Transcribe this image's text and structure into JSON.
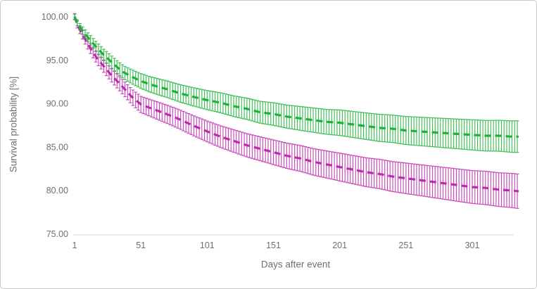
{
  "chart_data": {
    "type": "line",
    "title": "",
    "xlabel": "Days after event",
    "ylabel": "Survival probability [%]",
    "xlim": [
      1,
      336
    ],
    "ylim": [
      75,
      100
    ],
    "xticks": [
      1,
      51,
      101,
      151,
      201,
      251,
      301
    ],
    "yticks": [
      100,
      95,
      90,
      85,
      80,
      75
    ],
    "ytick_labels": [
      "100.00",
      "95.00",
      "90.00",
      "85.00",
      "80.00",
      "75.00"
    ],
    "grid": false,
    "legend": "none",
    "axis_color": "#d9d9d9",
    "label_color": "#6f6f6f",
    "x": [
      1,
      3,
      6,
      10,
      14,
      18,
      23,
      28,
      33,
      38,
      44,
      51,
      58,
      65,
      72,
      80,
      90,
      101,
      111,
      121,
      131,
      141,
      151,
      161,
      171,
      181,
      191,
      201,
      211,
      221,
      231,
      241,
      251,
      261,
      271,
      281,
      291,
      301,
      311,
      321,
      331,
      336
    ],
    "series": [
      {
        "name": "green-series",
        "color": "#1db237",
        "marker": "dash-with-error-bars",
        "values": [
          100.0,
          99.3,
          98.6,
          97.8,
          97.1,
          96.4,
          95.6,
          94.9,
          94.2,
          93.6,
          93.1,
          92.6,
          92.2,
          91.9,
          91.6,
          91.2,
          90.8,
          90.4,
          90.1,
          89.7,
          89.4,
          89.0,
          88.8,
          88.5,
          88.3,
          88.1,
          87.9,
          87.8,
          87.6,
          87.4,
          87.2,
          87.1,
          86.9,
          86.8,
          86.7,
          86.6,
          86.5,
          86.4,
          86.3,
          86.3,
          86.2,
          86.2
        ],
        "ci": [
          0.3,
          0.35,
          0.4,
          0.5,
          0.55,
          0.6,
          0.65,
          0.7,
          0.73,
          0.76,
          0.8,
          0.85,
          0.89,
          0.93,
          0.96,
          1.0,
          1.05,
          1.1,
          1.15,
          1.19,
          1.23,
          1.26,
          1.3,
          1.33,
          1.37,
          1.4,
          1.43,
          1.47,
          1.5,
          1.53,
          1.56,
          1.58,
          1.61,
          1.64,
          1.66,
          1.69,
          1.71,
          1.74,
          1.76,
          1.78,
          1.81,
          1.82
        ]
      },
      {
        "name": "magenta-series",
        "color": "#bc2bac",
        "marker": "dash-with-error-bars",
        "values": [
          100.0,
          99.1,
          98.2,
          97.1,
          96.1,
          95.2,
          94.3,
          93.4,
          92.6,
          91.8,
          90.8,
          89.9,
          89.5,
          89.1,
          88.7,
          88.2,
          87.5,
          86.8,
          86.2,
          85.7,
          85.2,
          84.8,
          84.4,
          84.0,
          83.7,
          83.3,
          83.0,
          82.7,
          82.4,
          82.1,
          81.9,
          81.6,
          81.4,
          81.2,
          81.0,
          80.8,
          80.6,
          80.4,
          80.3,
          80.1,
          80.0,
          79.9
        ],
        "ci": [
          0.35,
          0.41,
          0.48,
          0.55,
          0.61,
          0.65,
          0.71,
          0.75,
          0.8,
          0.84,
          0.88,
          0.93,
          0.97,
          1.02,
          1.06,
          1.1,
          1.15,
          1.2,
          1.25,
          1.3,
          1.34,
          1.38,
          1.42,
          1.46,
          1.49,
          1.53,
          1.56,
          1.6,
          1.63,
          1.66,
          1.69,
          1.73,
          1.76,
          1.78,
          1.81,
          1.84,
          1.87,
          1.89,
          1.92,
          1.94,
          1.97,
          1.98
        ]
      }
    ]
  }
}
